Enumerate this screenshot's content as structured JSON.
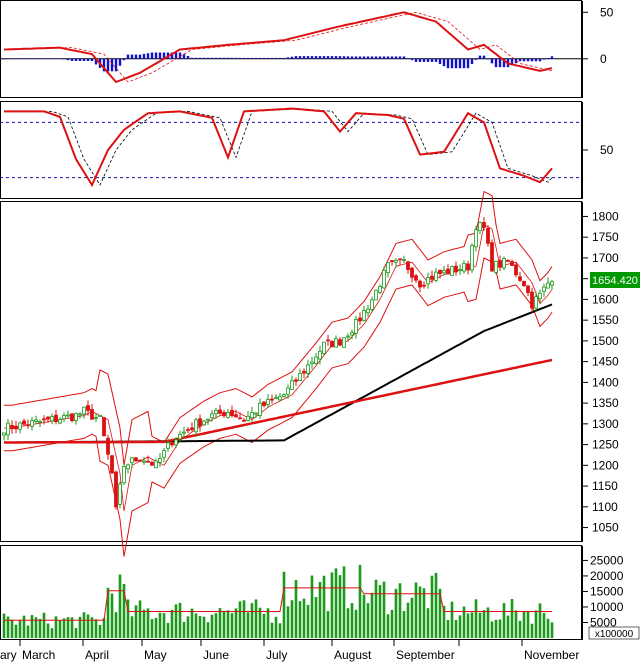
{
  "chart_data": [
    {
      "type": "line",
      "panel": "macd",
      "y_ticks": [
        "50",
        "0"
      ],
      "ylim": [
        -40,
        60
      ],
      "series": [],
      "histogram": true
    },
    {
      "type": "line",
      "panel": "stochastic",
      "y_ticks": [
        "50"
      ],
      "ylim": [
        0,
        100
      ],
      "reference_lines": [
        80,
        20
      ],
      "series": []
    },
    {
      "type": "candlestick",
      "panel": "price",
      "y_ticks": [
        "1800",
        "1750",
        "1700",
        "1650",
        "1600",
        "1550",
        "1500",
        "1450",
        "1400",
        "1350",
        "1300",
        "1250",
        "1200",
        "1150",
        "1100",
        "1050"
      ],
      "ylim": [
        1020,
        1830
      ],
      "last_price_label": "1654.420",
      "overlays": [
        "Bollinger Bands (red)",
        "MA (black)",
        "MA (red)"
      ]
    },
    {
      "type": "bar",
      "panel": "volume",
      "y_ticks": [
        "25000",
        "20000",
        "15000",
        "10000",
        "5000"
      ],
      "ylim": [
        0,
        29000
      ],
      "unit_label": "x100000"
    }
  ],
  "x_axis": {
    "months": [
      "ary",
      "March",
      "April",
      "May",
      "June",
      "July",
      "August",
      "September",
      "November"
    ]
  },
  "colors": {
    "up": "#1a9a1a",
    "down": "#dd1111",
    "macd_hist": "#1111cc",
    "ma_red": "#dd1111",
    "ma_black": "#000000",
    "grid_dash": "#1111aa",
    "price_tag_bg": "#009900"
  }
}
